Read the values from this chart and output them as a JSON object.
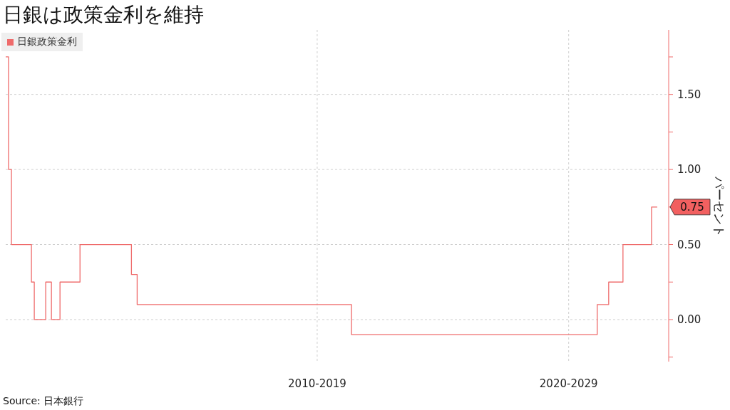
{
  "chart_data": {
    "type": "step",
    "title": "日銀は政策金利を維持",
    "ylabel": "パーセント",
    "categories": [
      null,
      null,
      null,
      null,
      null,
      null,
      null,
      null,
      null,
      null,
      null,
      null,
      null,
      null,
      null,
      null,
      null,
      null,
      null,
      null,
      null,
      null,
      null,
      null,
      null,
      null,
      null,
      null,
      null,
      null,
      null,
      null,
      null,
      null,
      null,
      null,
      null,
      null,
      null,
      null,
      null,
      null,
      null,
      null,
      null,
      null,
      null,
      null,
      null,
      null,
      null,
      null,
      null,
      null,
      null,
      null,
      null,
      null,
      null,
      null,
      null,
      null,
      null,
      null,
      null,
      null,
      null,
      null,
      null,
      null,
      null,
      null,
      null,
      null,
      null,
      null,
      null,
      null,
      null,
      null,
      null,
      null,
      null,
      null,
      null,
      null,
      null,
      null,
      null,
      null,
      null,
      null,
      null,
      null,
      null,
      null,
      null,
      null,
      null,
      null,
      null,
      null,
      null,
      null,
      null,
      null,
      null,
      null,
      null,
      "2010-2019",
      null,
      null,
      null,
      null,
      null,
      null,
      null,
      null,
      null,
      null,
      null,
      null,
      null,
      null,
      null,
      null,
      null,
      null,
      null,
      null,
      null,
      null,
      null,
      null,
      null,
      null,
      null,
      null,
      null,
      null,
      null,
      null,
      null,
      null,
      null,
      null,
      null,
      null,
      null,
      null,
      null,
      null,
      null,
      null,
      null,
      null,
      null,
      null,
      null,
      null,
      null,
      null,
      null,
      null,
      null,
      null,
      null,
      null,
      null,
      null,
      null,
      null,
      null,
      null,
      null,
      null,
      null,
      null,
      null,
      null,
      null,
      null,
      null,
      null,
      null,
      null,
      null,
      null,
      null,
      null,
      null,
      null,
      null,
      null,
      null,
      null,
      null,
      "2020-2029",
      null,
      null,
      null,
      null,
      null,
      null,
      null,
      null,
      null,
      null,
      null,
      null,
      null,
      null,
      null,
      null,
      null,
      null,
      null,
      null,
      null,
      null,
      null,
      null,
      null,
      null,
      null,
      null,
      null,
      null,
      null,
      null,
      null,
      null,
      null
    ],
    "series": [
      {
        "name": "日銀政策金利",
        "color": "#ef6b6b",
        "values": [
          1.75,
          1,
          0.5,
          0.5,
          0.5,
          0.5,
          0.5,
          0.5,
          0.5,
          0.25,
          0,
          0,
          0,
          0,
          0.25,
          0.25,
          0,
          0,
          0,
          0.25,
          0.25,
          0.25,
          0.25,
          0.25,
          0.25,
          0.25,
          0.5,
          0.5,
          0.5,
          0.5,
          0.5,
          0.5,
          0.5,
          0.5,
          0.5,
          0.5,
          0.5,
          0.5,
          0.5,
          0.5,
          0.5,
          0.5,
          0.5,
          0.5,
          0.3,
          0.3,
          0.1,
          0.1,
          0.1,
          0.1,
          0.1,
          0.1,
          0.1,
          0.1,
          0.1,
          0.1,
          0.1,
          0.1,
          0.1,
          0.1,
          0.1,
          0.1,
          0.1,
          0.1,
          0.1,
          0.1,
          0.1,
          0.1,
          0.1,
          0.1,
          0.1,
          0.1,
          0.1,
          0.1,
          0.1,
          0.1,
          0.1,
          0.1,
          0.1,
          0.1,
          0.1,
          0.1,
          0.1,
          0.1,
          0.1,
          0.1,
          0.1,
          0.1,
          0.1,
          0.1,
          0.1,
          0.1,
          0.1,
          0.1,
          0.1,
          0.1,
          0.1,
          0.1,
          0.1,
          0.1,
          0.1,
          0.1,
          0.1,
          0.1,
          0.1,
          0.1,
          0.1,
          0.1,
          0.1,
          0.1,
          0.1,
          0.1,
          0.1,
          0.1,
          0.1,
          0.1,
          0.1,
          0.1,
          0.1,
          0.1,
          0.1,
          -0.1,
          -0.1,
          -0.1,
          -0.1,
          -0.1,
          -0.1,
          -0.1,
          -0.1,
          -0.1,
          -0.1,
          -0.1,
          -0.1,
          -0.1,
          -0.1,
          -0.1,
          -0.1,
          -0.1,
          -0.1,
          -0.1,
          -0.1,
          -0.1,
          -0.1,
          -0.1,
          -0.1,
          -0.1,
          -0.1,
          -0.1,
          -0.1,
          -0.1,
          -0.1,
          -0.1,
          -0.1,
          -0.1,
          -0.1,
          -0.1,
          -0.1,
          -0.1,
          -0.1,
          -0.1,
          -0.1,
          -0.1,
          -0.1,
          -0.1,
          -0.1,
          -0.1,
          -0.1,
          -0.1,
          -0.1,
          -0.1,
          -0.1,
          -0.1,
          -0.1,
          -0.1,
          -0.1,
          -0.1,
          -0.1,
          -0.1,
          -0.1,
          -0.1,
          -0.1,
          -0.1,
          -0.1,
          -0.1,
          -0.1,
          -0.1,
          -0.1,
          -0.1,
          -0.1,
          -0.1,
          -0.1,
          -0.1,
          -0.1,
          -0.1,
          -0.1,
          -0.1,
          -0.1,
          -0.1,
          -0.1,
          -0.1,
          -0.1,
          -0.1,
          -0.1,
          -0.1,
          -0.1,
          -0.1,
          -0.1,
          0.1,
          0.1,
          0.1,
          0.1,
          0.25,
          0.25,
          0.25,
          0.25,
          0.25,
          0.5,
          0.5,
          0.5,
          0.5,
          0.5,
          0.5,
          0.5,
          0.5,
          0.5,
          0.5,
          0.75,
          0.75,
          0.75,
          null,
          null,
          null,
          null
        ]
      }
    ],
    "ylim": [
      -0.28,
      1.93
    ],
    "yticks": [
      {
        "value": -0.25,
        "label": null
      },
      {
        "value": 0,
        "label": "0.00"
      },
      {
        "value": 0.25,
        "label": null
      },
      {
        "value": 0.5,
        "label": "0.50"
      },
      {
        "value": 0.75,
        "label": null
      },
      {
        "value": 1,
        "label": "1.00"
      },
      {
        "value": 1.25,
        "label": null
      },
      {
        "value": 1.5,
        "label": "1.50"
      },
      {
        "value": 1.75,
        "label": null
      }
    ],
    "grid": true,
    "legend": "top left",
    "marker": "none",
    "line_style": "solid",
    "annotations": [
      "0.75",
      "Source: 日本銀行"
    ]
  }
}
